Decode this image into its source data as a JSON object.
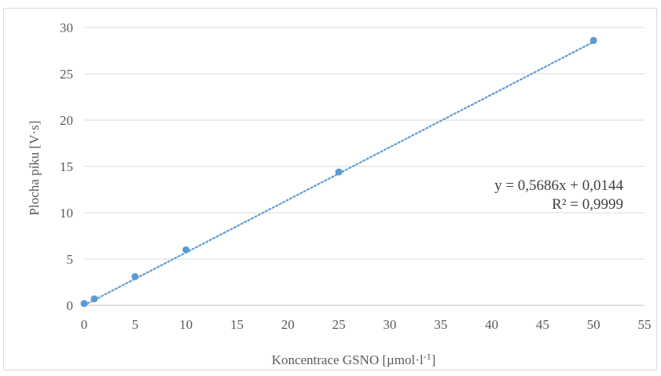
{
  "chart_data": {
    "type": "scatter",
    "title": "",
    "xlabel": "Koncentrace GSNO [µmol·l",
    "xlabel_sup": "-1",
    "xlabel_end": "]",
    "ylabel": "Plocha píku [V·s]",
    "xlim": [
      0,
      55
    ],
    "ylim": [
      0,
      30
    ],
    "x_ticks": [
      0,
      5,
      10,
      15,
      20,
      25,
      30,
      35,
      40,
      45,
      50,
      55
    ],
    "y_ticks": [
      0,
      5,
      10,
      15,
      20,
      25,
      30
    ],
    "grid": "horizontal",
    "series": [
      {
        "color": "#5b9bd5",
        "points": [
          {
            "x": 0,
            "y": 0.2
          },
          {
            "x": 1,
            "y": 0.7
          },
          {
            "x": 5,
            "y": 3.1
          },
          {
            "x": 10,
            "y": 6.0
          },
          {
            "x": 25,
            "y": 14.4
          },
          {
            "x": 50,
            "y": 28.6
          }
        ]
      }
    ],
    "trendline": {
      "type": "linear",
      "style": "dotted",
      "color": "#5b9bd5",
      "slope": 0.5686,
      "intercept": 0.0144,
      "x_range": [
        0,
        50
      ],
      "equation_label": "y = 0,5686x + 0,0144",
      "r2_label": "R² = 0,9999"
    }
  }
}
